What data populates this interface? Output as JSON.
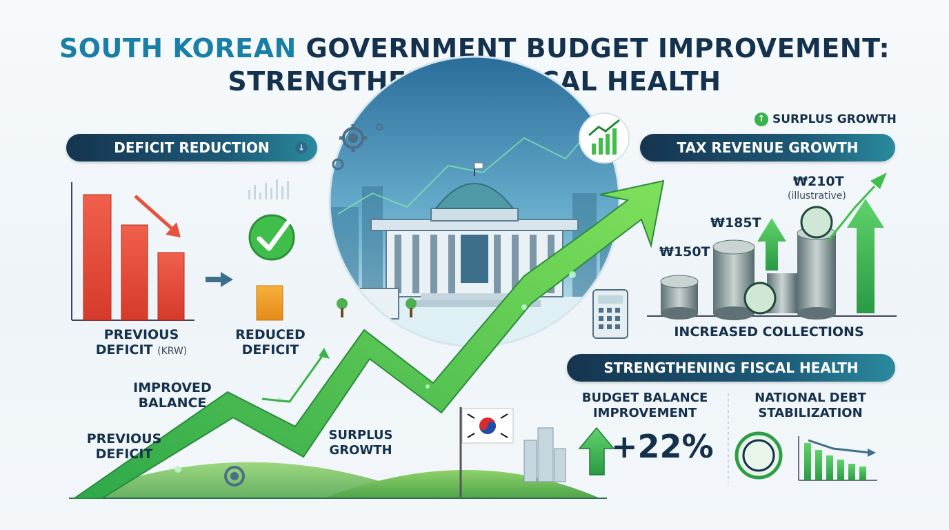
{
  "title": {
    "part1": "SOUTH KOREAN",
    "part2": "GOVERNMENT BUDGET IMPROVEMENT:",
    "line2": "STRENGTHENING FISCAL HEALTH"
  },
  "deficit": {
    "pill": "DEFICIT REDUCTION",
    "pill_icon": "down-arrow-icon",
    "previous_label_line1": "PREVIOUS",
    "previous_label_line2": "DEFICIT",
    "previous_unit": "(KRW)",
    "reduced_line1": "REDUCED",
    "reduced_line2": "DEFICIT"
  },
  "trend": {
    "improved_line1": "IMPROVED",
    "improved_line2": "BALANCE",
    "prev_line1": "PREVIOUS",
    "prev_line2": "DEFICIT",
    "surplus_line1": "SURPLUS",
    "surplus_line2": "GROWTH"
  },
  "surplus_badge": "SURPLUS GROWTH",
  "tax": {
    "pill": "TAX REVENUE GROWTH",
    "values": [
      "₩150T",
      "₩185T",
      "₩210T"
    ],
    "illustrative": "(illustrative)",
    "caption": "INCREASED COLLECTIONS"
  },
  "fiscal": {
    "pill": "STRENGTHENING FISCAL HEALTH",
    "balance_line1": "BUDGET BALANCE",
    "balance_line2": "IMPROVEMENT",
    "percent": "+22%",
    "debt_line1": "NATIONAL DEBT",
    "debt_line2": "STABILIZATION"
  },
  "colors": {
    "accent": "#1a7fa6",
    "navy": "#14324d",
    "green": "#3fbf4a",
    "red": "#e8503a",
    "orange": "#f2a12b"
  }
}
